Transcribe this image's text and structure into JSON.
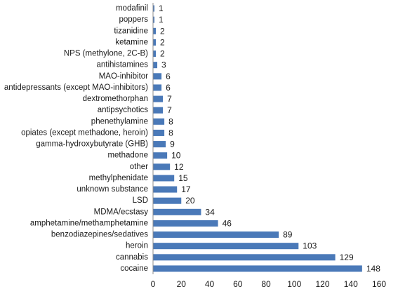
{
  "chart_data": {
    "type": "bar",
    "orientation": "horizontal",
    "title": "",
    "xlabel": "",
    "ylabel": "",
    "xlim": [
      0,
      160
    ],
    "xticks": [
      0,
      20,
      40,
      60,
      80,
      100,
      120,
      140,
      160
    ],
    "grid": false,
    "legend": "none",
    "bar_color": "#4a79b8",
    "data_labels": true,
    "categories": [
      "modafinil",
      "poppers",
      "tizanidine",
      "ketamine",
      "NPS (methylone, 2C-B)",
      "antihistamines",
      "MAO-inhibitor",
      "antidepressants (except MAO-inhibitors)",
      "dextromethorphan",
      "antipsychotics",
      "phenethylamine",
      "opiates (except methadone, heroin)",
      "gamma-hydroxybutyrate (GHB)",
      "methadone",
      "other",
      "methylphenidate",
      "unknown substance",
      "LSD",
      "MDMA/ecstasy",
      "amphetamine/methamphetamine",
      "benzodiazepines/sedatives",
      "heroin",
      "cannabis",
      "cocaine"
    ],
    "values": [
      1,
      1,
      2,
      2,
      2,
      3,
      6,
      6,
      7,
      7,
      8,
      8,
      9,
      10,
      12,
      15,
      17,
      20,
      34,
      46,
      89,
      103,
      129,
      148
    ]
  }
}
